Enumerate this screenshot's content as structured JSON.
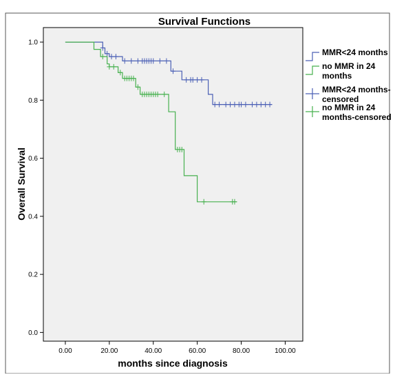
{
  "chart_data": {
    "type": "line",
    "subtype": "kaplan-meier survival curve",
    "title": "Survival Functions",
    "xlabel": "months since diagnosis",
    "ylabel": "Overall Survival",
    "xlim": [
      -10,
      108
    ],
    "ylim": [
      -0.03,
      1.05
    ],
    "grid": false,
    "legend_position": "right",
    "x_ticks": [
      0,
      20,
      40,
      60,
      80,
      100
    ],
    "x_tick_labels": [
      "0.00",
      "20.00",
      "40.00",
      "60.00",
      "80.00",
      "100.00"
    ],
    "y_ticks": [
      0,
      0.2,
      0.4,
      0.6,
      0.8,
      1.0
    ],
    "y_tick_labels": [
      "0.0",
      "0.2",
      "0.4",
      "0.6",
      "0.8",
      "1.0"
    ],
    "colors": {
      "plot_background": "#f0f0f0",
      "blue": "#4a5fb5",
      "green": "#46b04e",
      "axis": "#000000"
    },
    "legend": [
      {
        "label_lines": [
          "MMR<24 months"
        ],
        "color": "#4a5fb5",
        "symbol": "step"
      },
      {
        "label_lines": [
          "no MMR in 24",
          "months"
        ],
        "color": "#46b04e",
        "symbol": "step"
      },
      {
        "label_lines": [
          "MMR<24 months-",
          "censored"
        ],
        "color": "#4a5fb5",
        "symbol": "plus"
      },
      {
        "label_lines": [
          "no MMR in 24",
          "months-censored"
        ],
        "color": "#46b04e",
        "symbol": "plus"
      }
    ],
    "series": [
      {
        "name": "MMR<24 months",
        "color": "#4a5fb5",
        "steps": [
          [
            0,
            1.0
          ],
          [
            17,
            0.98
          ],
          [
            18,
            0.96
          ],
          [
            20,
            0.95
          ],
          [
            26,
            0.935
          ],
          [
            48,
            0.9
          ],
          [
            53,
            0.87
          ],
          [
            65,
            0.82
          ],
          [
            67,
            0.785
          ],
          [
            94,
            0.785
          ]
        ],
        "censored": [
          [
            17,
            0.98
          ],
          [
            19,
            0.96
          ],
          [
            21,
            0.95
          ],
          [
            23,
            0.95
          ],
          [
            27,
            0.935
          ],
          [
            30,
            0.935
          ],
          [
            33,
            0.935
          ],
          [
            35,
            0.935
          ],
          [
            36,
            0.935
          ],
          [
            37,
            0.935
          ],
          [
            38,
            0.935
          ],
          [
            39,
            0.935
          ],
          [
            40,
            0.935
          ],
          [
            43,
            0.935
          ],
          [
            46,
            0.935
          ],
          [
            49,
            0.9
          ],
          [
            55,
            0.87
          ],
          [
            57,
            0.87
          ],
          [
            58,
            0.87
          ],
          [
            60,
            0.87
          ],
          [
            62,
            0.87
          ],
          [
            68,
            0.785
          ],
          [
            70,
            0.785
          ],
          [
            73,
            0.785
          ],
          [
            75,
            0.785
          ],
          [
            77,
            0.785
          ],
          [
            79,
            0.785
          ],
          [
            80,
            0.785
          ],
          [
            82,
            0.785
          ],
          [
            85,
            0.785
          ],
          [
            87,
            0.785
          ],
          [
            89,
            0.785
          ],
          [
            91,
            0.785
          ],
          [
            93,
            0.785
          ]
        ]
      },
      {
        "name": "no MMR in 24 months",
        "color": "#46b04e",
        "steps": [
          [
            0,
            1.0
          ],
          [
            13,
            0.975
          ],
          [
            16,
            0.95
          ],
          [
            19,
            0.925
          ],
          [
            20,
            0.915
          ],
          [
            24,
            0.895
          ],
          [
            26,
            0.875
          ],
          [
            32,
            0.845
          ],
          [
            34,
            0.82
          ],
          [
            47,
            0.76
          ],
          [
            50,
            0.63
          ],
          [
            54,
            0.54
          ],
          [
            60,
            0.45
          ],
          [
            78,
            0.45
          ]
        ],
        "censored": [
          [
            17,
            0.95
          ],
          [
            20,
            0.915
          ],
          [
            22,
            0.915
          ],
          [
            25,
            0.895
          ],
          [
            27,
            0.875
          ],
          [
            28,
            0.875
          ],
          [
            29,
            0.875
          ],
          [
            30,
            0.875
          ],
          [
            31,
            0.875
          ],
          [
            33,
            0.845
          ],
          [
            35,
            0.82
          ],
          [
            36,
            0.82
          ],
          [
            37,
            0.82
          ],
          [
            38,
            0.82
          ],
          [
            39,
            0.82
          ],
          [
            40,
            0.82
          ],
          [
            41,
            0.82
          ],
          [
            42,
            0.82
          ],
          [
            45,
            0.82
          ],
          [
            51,
            0.63
          ],
          [
            52,
            0.63
          ],
          [
            53,
            0.63
          ],
          [
            63,
            0.45
          ],
          [
            76,
            0.45
          ],
          [
            77,
            0.45
          ]
        ]
      }
    ]
  }
}
